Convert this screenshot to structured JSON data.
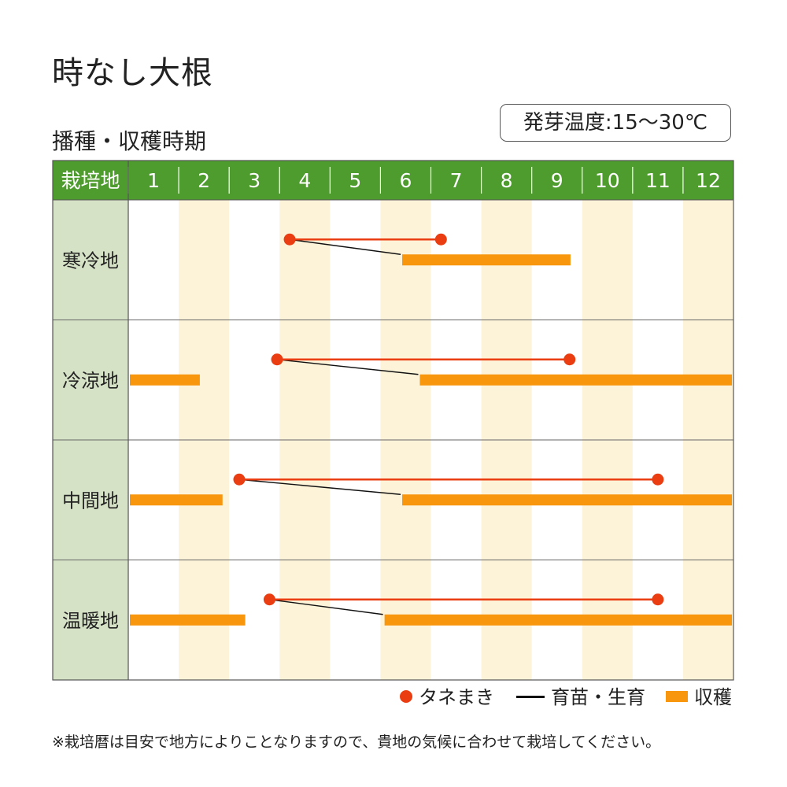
{
  "title": "時なし大根",
  "subtitle": "播種・収穫時期",
  "germination_temp": "発芽温度:15〜30℃",
  "colors": {
    "header_bg": "#4e9b2e",
    "label_col_bg": "#d6e2c6",
    "stripe": "#fdf3d9",
    "sowing": "#ea3d12",
    "growth": "#111111",
    "harvest": "#f8960d"
  },
  "chart_data": {
    "type": "table",
    "header_label": "栽培地",
    "months": [
      "1",
      "2",
      "3",
      "4",
      "5",
      "6",
      "7",
      "8",
      "9",
      "10",
      "11",
      "12"
    ],
    "regions": [
      {
        "name": "寒冷地",
        "sowing": [
          4.2,
          7.2
        ],
        "growth_to": 6.4,
        "harvest": [
          [
            6.4,
            9.8
          ]
        ]
      },
      {
        "name": "冷涼地",
        "sowing": [
          3.95,
          9.75
        ],
        "growth_to": 6.75,
        "harvest": [
          [
            1.0,
            2.45
          ],
          [
            6.75,
            13.0
          ]
        ]
      },
      {
        "name": "中間地",
        "sowing": [
          3.2,
          11.5
        ],
        "growth_to": 6.4,
        "harvest": [
          [
            1.0,
            2.9
          ],
          [
            6.4,
            13.0
          ]
        ]
      },
      {
        "name": "温暖地",
        "sowing": [
          3.8,
          11.5
        ],
        "growth_to": 6.05,
        "harvest": [
          [
            1.0,
            3.35
          ],
          [
            6.05,
            13.0
          ]
        ]
      }
    ]
  },
  "legend": {
    "sowing": "タネまき",
    "growth": "育苗・生育",
    "harvest": "収穫"
  },
  "footnote": "※栽培暦は目安で地方によりことなりますので、貴地の気候に合わせて栽培してください。"
}
